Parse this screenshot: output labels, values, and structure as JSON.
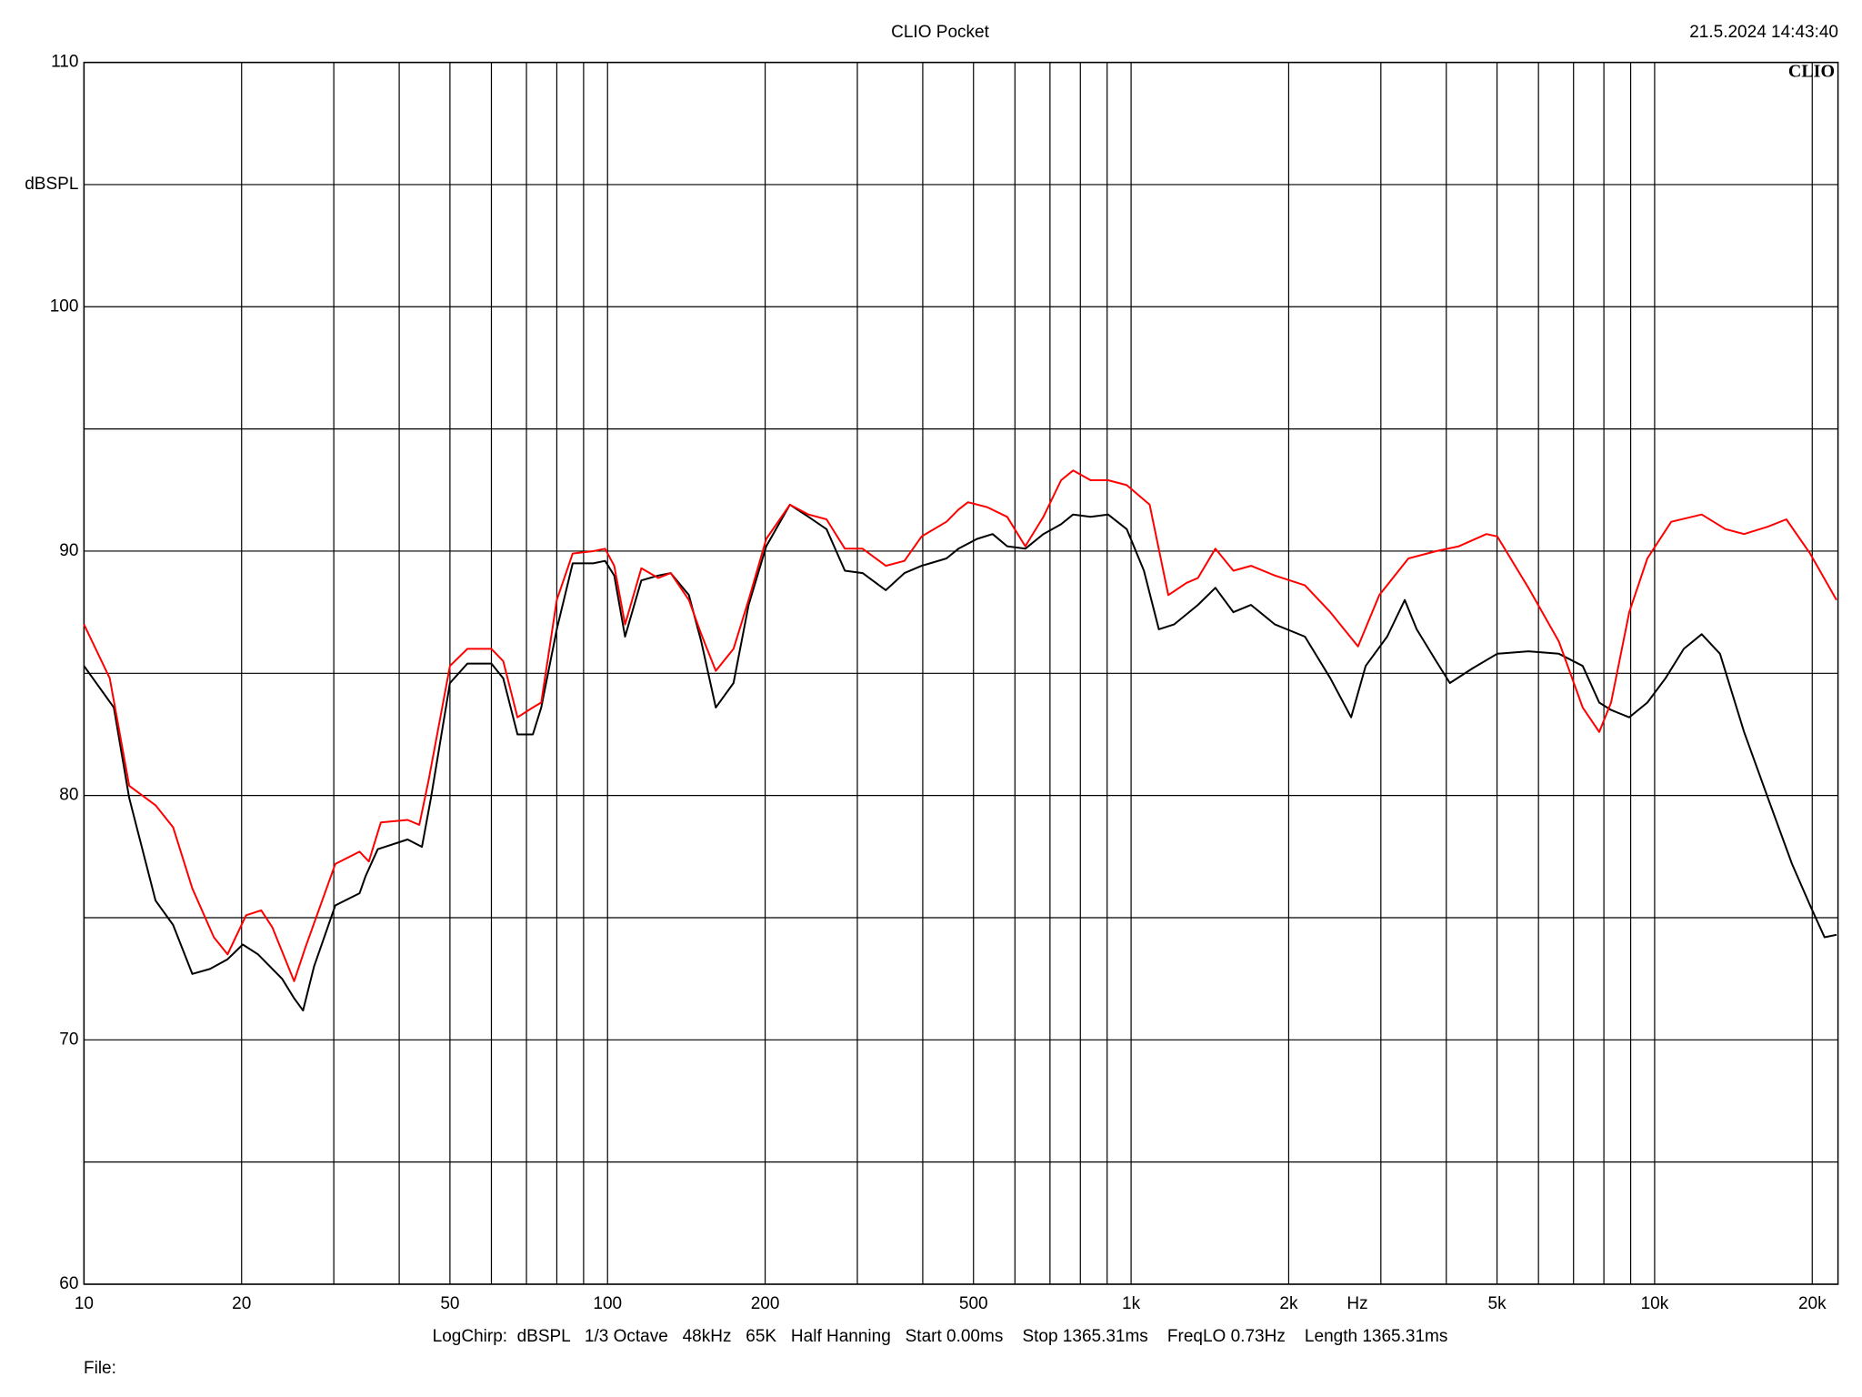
{
  "title": "CLIO Pocket",
  "timestamp": "21.5.2024 14:43:40",
  "logo": "CLIO",
  "footer": "LogChirp:  dBSPL   1/3 Octave   48kHz   65K   Half Hanning   Start 0.00ms    Stop 1365.31ms    FreqLO 0.73Hz    Length 1365.31ms",
  "file_label": "File:",
  "chart_data": {
    "type": "line",
    "y_label": "dBSPL",
    "x_label": "Hz",
    "xscale": "log",
    "grid": true,
    "xlim": [
      10,
      22400
    ],
    "ylim": [
      60,
      110
    ],
    "xticks": [
      10,
      20,
      50,
      100,
      200,
      500,
      {
        "value": 1000,
        "label": "1k"
      },
      {
        "value": 2000,
        "label": "2k"
      },
      {
        "value": 5000,
        "label": "5k"
      },
      {
        "value": 10000,
        "label": "10k"
      },
      {
        "value": 20000,
        "label": "20k"
      }
    ],
    "xminor": [
      30,
      40,
      60,
      70,
      80,
      90,
      300,
      400,
      600,
      700,
      800,
      900,
      3000,
      4000,
      6000,
      7000,
      8000,
      9000
    ],
    "yticks": [
      60,
      70,
      80,
      90,
      100,
      110
    ],
    "yminor": [
      65,
      75,
      85,
      95,
      105
    ],
    "series": [
      {
        "color": "#000000",
        "x": [
          10,
          11.4,
          12.2,
          13.7,
          14.8,
          16.1,
          17.4,
          18.8,
          20.1,
          21.5,
          23.9,
          25.2,
          26.2,
          27.5,
          30.2,
          33.6,
          34.5,
          36.4,
          41.5,
          44.2,
          46,
          50,
          54,
          60,
          63.2,
          67.3,
          72,
          74.7,
          80,
          85.8,
          93.9,
          98.9,
          103,
          108,
          116,
          125,
          132,
          143,
          151,
          161,
          174,
          186,
          201,
          223,
          242,
          262,
          284,
          307,
          340,
          369,
          398,
          444,
          468,
          508,
          544,
          580,
          628,
          680,
          735,
          775,
          837,
          904,
          981,
          1058,
          1130,
          1208,
          1342,
          1449,
          1568,
          1695,
          1883,
          2148,
          2402,
          2632,
          2806,
          3084,
          3332,
          3512,
          3825,
          4064,
          4489,
          5004,
          5740,
          6563,
          7288,
          7837,
          8258,
          8944,
          9684,
          10490,
          11370,
          12300,
          13330,
          14820,
          16460,
          18300,
          19810,
          21110,
          22260
        ],
        "values": [
          85.3,
          83.6,
          79.9,
          75.7,
          74.7,
          72.7,
          72.9,
          73.3,
          73.9,
          73.5,
          72.5,
          71.7,
          71.2,
          73.0,
          75.5,
          76.0,
          76.7,
          77.8,
          78.2,
          77.9,
          79.9,
          84.6,
          85.4,
          85.4,
          84.8,
          82.5,
          82.5,
          83.6,
          86.8,
          89.5,
          89.5,
          89.6,
          89.0,
          86.5,
          88.8,
          89.0,
          89.1,
          88.2,
          86.3,
          83.6,
          84.6,
          87.8,
          90.2,
          91.9,
          91.4,
          90.9,
          89.2,
          89.1,
          88.4,
          89.1,
          89.4,
          89.7,
          90.1,
          90.5,
          90.7,
          90.2,
          90.1,
          90.7,
          91.1,
          91.5,
          91.4,
          91.5,
          90.9,
          89.2,
          86.8,
          87.0,
          87.8,
          88.5,
          87.5,
          87.8,
          87.0,
          86.5,
          84.8,
          83.2,
          85.3,
          86.5,
          88.0,
          86.8,
          85.5,
          84.6,
          85.2,
          85.8,
          85.9,
          85.8,
          85.3,
          83.8,
          83.5,
          83.2,
          83.8,
          84.8,
          86.0,
          86.6,
          85.8,
          82.6,
          79.9,
          77.2,
          75.5,
          74.2,
          74.3
        ]
      },
      {
        "color": "#ff0000",
        "x": [
          10,
          11.2,
          12.2,
          13.7,
          14.8,
          16.1,
          17.7,
          18.8,
          20.4,
          21.8,
          22.9,
          25.2,
          26.5,
          30.2,
          33.6,
          35,
          36.9,
          41.5,
          43.7,
          45.5,
          50,
          54,
          60,
          63.2,
          67.3,
          72,
          74.7,
          80,
          85.8,
          93.9,
          98.9,
          103,
          108,
          116,
          125,
          132,
          143,
          151,
          161,
          174,
          186,
          201,
          223,
          242,
          262,
          284,
          307,
          340,
          369,
          398,
          444,
          468,
          488,
          531,
          580,
          628,
          680,
          735,
          775,
          837,
          904,
          981,
          1085,
          1178,
          1276,
          1342,
          1449,
          1568,
          1695,
          1883,
          2148,
          2402,
          2713,
          2979,
          3386,
          3825,
          4230,
          4773,
          5004,
          5740,
          6563,
          7288,
          7837,
          8258,
          8944,
          9684,
          10760,
          12300,
          13660,
          14820,
          16460,
          17850,
          19810,
          22260
        ],
        "values": [
          87.0,
          84.8,
          80.4,
          79.6,
          78.7,
          76.2,
          74.2,
          73.5,
          75.1,
          75.3,
          74.6,
          72.4,
          73.8,
          77.2,
          77.7,
          77.3,
          78.9,
          79.0,
          78.8,
          80.6,
          85.3,
          86.0,
          86.0,
          85.5,
          83.2,
          83.6,
          83.8,
          88.0,
          89.9,
          90.0,
          90.1,
          89.4,
          87.0,
          89.3,
          88.9,
          89.1,
          88.0,
          86.6,
          85.1,
          86.0,
          88.0,
          90.5,
          91.9,
          91.5,
          91.3,
          90.1,
          90.1,
          89.4,
          89.6,
          90.6,
          91.2,
          91.7,
          92.0,
          91.8,
          91.4,
          90.2,
          91.4,
          92.9,
          93.3,
          92.9,
          92.9,
          92.7,
          91.9,
          88.2,
          88.7,
          88.9,
          90.1,
          89.2,
          89.4,
          89.0,
          88.6,
          87.5,
          86.1,
          88.2,
          89.7,
          90.0,
          90.2,
          90.7,
          90.6,
          88.5,
          86.3,
          83.6,
          82.6,
          83.8,
          87.5,
          89.7,
          91.2,
          91.5,
          90.9,
          90.7,
          91.0,
          91.3,
          89.9,
          88.0
        ]
      }
    ]
  }
}
